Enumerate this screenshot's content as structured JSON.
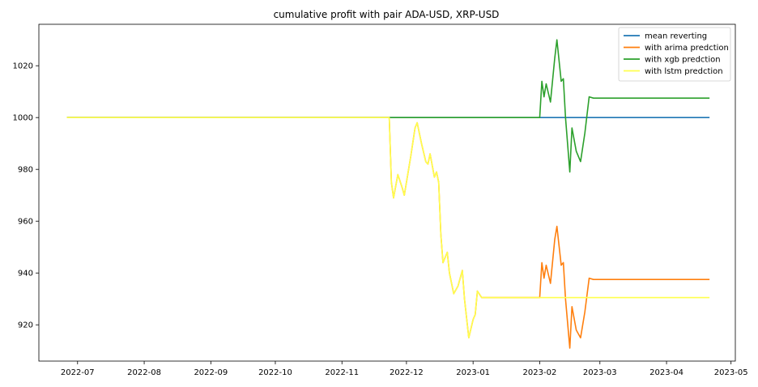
{
  "chart_data": {
    "type": "line",
    "title": "cumulative profit with pair ADA-USD, XRP-USD",
    "xlabel": "",
    "ylabel": "",
    "xlim": [
      "2022-06-13",
      "2023-05-03"
    ],
    "ylim": [
      906,
      1036
    ],
    "x_ticks": [
      "2022-07",
      "2022-08",
      "2022-09",
      "2022-10",
      "2022-11",
      "2022-12",
      "2023-01",
      "2023-02",
      "2023-03",
      "2023-04",
      "2023-05"
    ],
    "x_tick_dates": [
      "2022-07-01",
      "2022-08-01",
      "2022-09-01",
      "2022-10-01",
      "2022-11-01",
      "2022-12-01",
      "2023-01-01",
      "2023-02-01",
      "2023-03-01",
      "2023-04-01",
      "2023-05-01"
    ],
    "y_ticks": [
      920,
      940,
      960,
      980,
      1000,
      1020
    ],
    "grid": false,
    "legend_position": "top-right",
    "series": [
      {
        "name": "mean reverting",
        "color": "#1f77b4",
        "points": [
          [
            "2022-06-26",
            1000
          ],
          [
            "2022-11-23",
            1000
          ],
          [
            "2023-02-01",
            1000
          ],
          [
            "2023-04-21",
            1000
          ]
        ]
      },
      {
        "name": "with arima predction",
        "color": "#ff7f0e",
        "points": [
          [
            "2022-06-26",
            1000
          ],
          [
            "2022-11-23",
            1000
          ],
          [
            "2022-11-24",
            975
          ],
          [
            "2022-11-25",
            969
          ],
          [
            "2022-11-27",
            978
          ],
          [
            "2022-11-29",
            973
          ],
          [
            "2022-11-30",
            970
          ],
          [
            "2022-12-03",
            985
          ],
          [
            "2022-12-05",
            996
          ],
          [
            "2022-12-06",
            998
          ],
          [
            "2022-12-08",
            990
          ],
          [
            "2022-12-10",
            983
          ],
          [
            "2022-12-11",
            982
          ],
          [
            "2022-12-12",
            986
          ],
          [
            "2022-12-14",
            977
          ],
          [
            "2022-12-15",
            979
          ],
          [
            "2022-12-16",
            975
          ],
          [
            "2022-12-17",
            955
          ],
          [
            "2022-12-18",
            944
          ],
          [
            "2022-12-20",
            948
          ],
          [
            "2022-12-21",
            940
          ],
          [
            "2022-12-23",
            932
          ],
          [
            "2022-12-25",
            935
          ],
          [
            "2022-12-27",
            941
          ],
          [
            "2022-12-28",
            930
          ],
          [
            "2022-12-30",
            915
          ],
          [
            "2023-01-01",
            922
          ],
          [
            "2023-01-02",
            924
          ],
          [
            "2023-01-03",
            933
          ],
          [
            "2023-01-05",
            930.5
          ],
          [
            "2023-02-01",
            930.5
          ],
          [
            "2023-02-02",
            944
          ],
          [
            "2023-02-03",
            938
          ],
          [
            "2023-02-04",
            943
          ],
          [
            "2023-02-06",
            936
          ],
          [
            "2023-02-08",
            953
          ],
          [
            "2023-02-09",
            958
          ],
          [
            "2023-02-11",
            943
          ],
          [
            "2023-02-12",
            944
          ],
          [
            "2023-02-13",
            930
          ],
          [
            "2023-02-15",
            911
          ],
          [
            "2023-02-16",
            927
          ],
          [
            "2023-02-18",
            918
          ],
          [
            "2023-02-20",
            915
          ],
          [
            "2023-02-22",
            925
          ],
          [
            "2023-02-24",
            938
          ],
          [
            "2023-02-26",
            937.5
          ],
          [
            "2023-04-21",
            937.5
          ]
        ]
      },
      {
        "name": "with xgb predction",
        "color": "#2ca02c",
        "points": [
          [
            "2022-06-26",
            1000
          ],
          [
            "2022-11-23",
            1000
          ],
          [
            "2023-02-01",
            1000
          ],
          [
            "2023-02-02",
            1014
          ],
          [
            "2023-02-03",
            1008
          ],
          [
            "2023-02-04",
            1013
          ],
          [
            "2023-02-06",
            1006
          ],
          [
            "2023-02-08",
            1023
          ],
          [
            "2023-02-09",
            1030
          ],
          [
            "2023-02-11",
            1014
          ],
          [
            "2023-02-12",
            1015
          ],
          [
            "2023-02-13",
            1000
          ],
          [
            "2023-02-15",
            979
          ],
          [
            "2023-02-16",
            996
          ],
          [
            "2023-02-18",
            987
          ],
          [
            "2023-02-20",
            983
          ],
          [
            "2023-02-22",
            994
          ],
          [
            "2023-02-24",
            1008
          ],
          [
            "2023-02-26",
            1007.5
          ],
          [
            "2023-04-21",
            1007.5
          ]
        ]
      },
      {
        "name": "with lstm predction",
        "color": "#ffff4d",
        "points": [
          [
            "2022-06-26",
            1000
          ],
          [
            "2022-11-23",
            1000
          ],
          [
            "2022-11-24",
            975
          ],
          [
            "2022-11-25",
            969
          ],
          [
            "2022-11-27",
            978
          ],
          [
            "2022-11-29",
            973
          ],
          [
            "2022-11-30",
            970
          ],
          [
            "2022-12-03",
            985
          ],
          [
            "2022-12-05",
            996
          ],
          [
            "2022-12-06",
            998
          ],
          [
            "2022-12-08",
            990
          ],
          [
            "2022-12-10",
            983
          ],
          [
            "2022-12-11",
            982
          ],
          [
            "2022-12-12",
            986
          ],
          [
            "2022-12-14",
            977
          ],
          [
            "2022-12-15",
            979
          ],
          [
            "2022-12-16",
            975
          ],
          [
            "2022-12-17",
            955
          ],
          [
            "2022-12-18",
            944
          ],
          [
            "2022-12-20",
            948
          ],
          [
            "2022-12-21",
            940
          ],
          [
            "2022-12-23",
            932
          ],
          [
            "2022-12-25",
            935
          ],
          [
            "2022-12-27",
            941
          ],
          [
            "2022-12-28",
            930
          ],
          [
            "2022-12-30",
            915
          ],
          [
            "2023-01-01",
            922
          ],
          [
            "2023-01-02",
            924
          ],
          [
            "2023-01-03",
            933
          ],
          [
            "2023-01-05",
            930.5
          ],
          [
            "2023-04-21",
            930.5
          ]
        ]
      }
    ]
  }
}
